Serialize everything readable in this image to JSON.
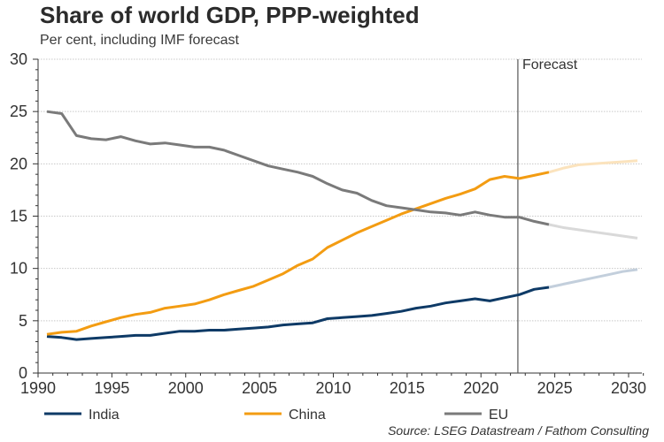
{
  "chart_data": {
    "type": "line",
    "title": "Share of world GDP, PPP-weighted",
    "subtitle": "Per cent, including IMF forecast",
    "xlabel": "",
    "ylabel": "",
    "xlim": [
      1990,
      2031
    ],
    "ylim": [
      0,
      30
    ],
    "x_ticks": [
      "1990",
      "1995",
      "2000",
      "2005",
      "2010",
      "2015",
      "2020",
      "2025",
      "2030"
    ],
    "y_ticks": [
      "0",
      "5",
      "10",
      "15",
      "20",
      "25",
      "30"
    ],
    "grid": "horizontal dotted",
    "forecast_marker": {
      "label": "Forecast",
      "x": 2022.5
    },
    "legend_position": "bottom",
    "source": "Source: LSEG Datastream / Fathom Consulting",
    "x": [
      1990,
      1991,
      1992,
      1993,
      1994,
      1995,
      1996,
      1997,
      1998,
      1999,
      2000,
      2001,
      2002,
      2003,
      2004,
      2005,
      2006,
      2007,
      2008,
      2009,
      2010,
      2011,
      2012,
      2013,
      2014,
      2015,
      2016,
      2017,
      2018,
      2019,
      2020,
      2021,
      2022,
      2023,
      2024
    ],
    "forecast_x": [
      2024,
      2025,
      2026,
      2027,
      2028,
      2029,
      2030
    ],
    "series": [
      {
        "name": "India",
        "color": "#0e3a66",
        "forecast_color": "#c3cfdc",
        "values": [
          3.5,
          3.4,
          3.2,
          3.3,
          3.4,
          3.5,
          3.6,
          3.6,
          3.8,
          4.0,
          4.0,
          4.1,
          4.1,
          4.2,
          4.3,
          4.4,
          4.6,
          4.7,
          4.8,
          5.2,
          5.3,
          5.4,
          5.5,
          5.7,
          5.9,
          6.2,
          6.4,
          6.7,
          6.9,
          7.1,
          6.9,
          7.2,
          7.5,
          8.0,
          8.2
        ],
        "forecast_values": [
          8.2,
          8.5,
          8.8,
          9.1,
          9.4,
          9.7,
          9.9
        ]
      },
      {
        "name": "China",
        "color": "#f39c12",
        "forecast_color": "#fbe3bd",
        "values": [
          3.7,
          3.9,
          4.0,
          4.5,
          4.9,
          5.3,
          5.6,
          5.8,
          6.2,
          6.4,
          6.6,
          7.0,
          7.5,
          7.9,
          8.3,
          8.9,
          9.5,
          10.3,
          10.9,
          12.0,
          12.7,
          13.4,
          14.0,
          14.6,
          15.2,
          15.7,
          16.2,
          16.7,
          17.1,
          17.6,
          18.5,
          18.8,
          18.6,
          18.9,
          19.2
        ],
        "forecast_values": [
          19.2,
          19.6,
          19.9,
          20.0,
          20.1,
          20.2,
          20.3
        ]
      },
      {
        "name": "EU",
        "color": "#7a7a7a",
        "forecast_color": "#d9d9d9",
        "values": [
          25.0,
          24.8,
          22.7,
          22.4,
          22.3,
          22.6,
          22.2,
          21.9,
          22.0,
          21.8,
          21.6,
          21.6,
          21.3,
          20.8,
          20.3,
          19.8,
          19.5,
          19.2,
          18.8,
          18.1,
          17.5,
          17.2,
          16.5,
          16.0,
          15.8,
          15.6,
          15.4,
          15.3,
          15.1,
          15.4,
          15.1,
          14.9,
          14.9,
          14.5,
          14.2
        ],
        "forecast_values": [
          14.2,
          13.9,
          13.7,
          13.5,
          13.3,
          13.1,
          12.9
        ]
      }
    ]
  }
}
